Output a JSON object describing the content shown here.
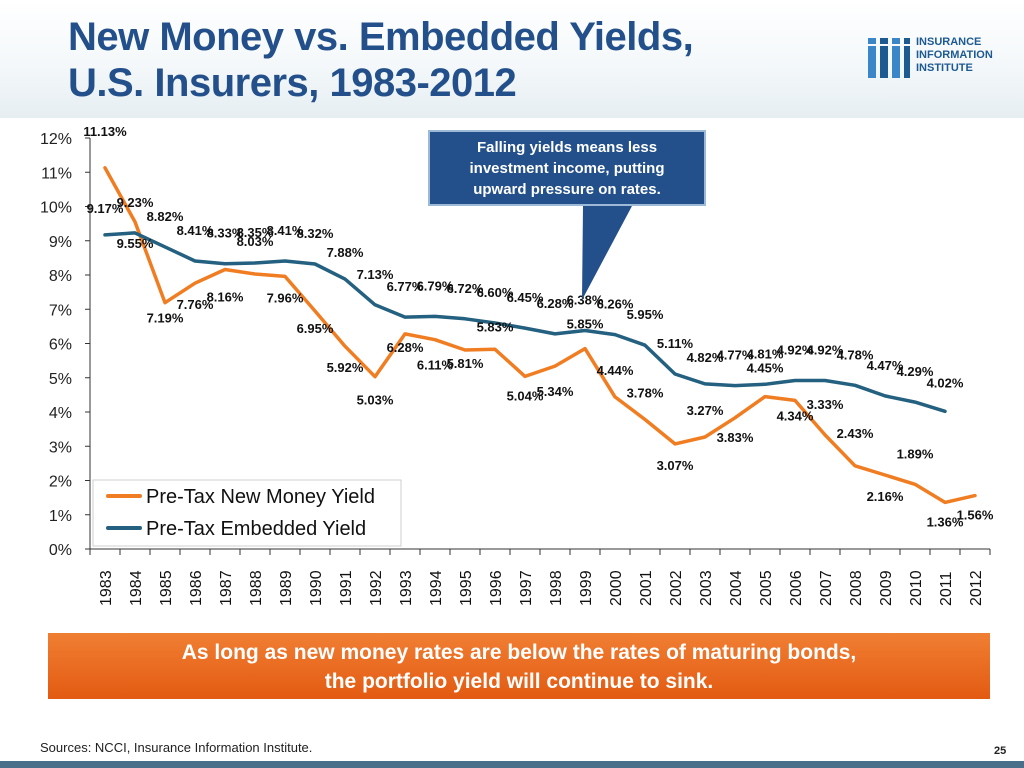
{
  "title_line1": "New Money vs. Embedded Yields,",
  "title_line2": "U.S. Insurers, 1983-2012",
  "logo": {
    "line1": "INSURANCE",
    "line2": "INFORMATION",
    "line3": "INSTITUTE"
  },
  "callout": {
    "line1": "Falling yields means less",
    "line2": "investment income, putting",
    "line3": "upward pressure on rates."
  },
  "banner": {
    "line1": "As long as new money rates are below the rates of maturing bonds,",
    "line2": "the portfolio yield will continue to sink."
  },
  "sources": "Sources: NCCI, Insurance Information Institute.",
  "page_number": "25",
  "colors": {
    "title": "#23508a",
    "new_money": "#f07d21",
    "embedded": "#24607f",
    "banner": "#e8661e"
  },
  "chart_data": {
    "type": "line",
    "title": "New Money vs. Embedded Yields, U.S. Insurers, 1983-2012",
    "xlabel": "",
    "ylabel": "",
    "ylim": [
      0,
      12
    ],
    "y_ticks": [
      "0%",
      "1%",
      "2%",
      "3%",
      "4%",
      "5%",
      "6%",
      "7%",
      "8%",
      "9%",
      "10%",
      "11%",
      "12%"
    ],
    "categories": [
      "1983",
      "1984",
      "1985",
      "1986",
      "1987",
      "1988",
      "1989",
      "1990",
      "1991",
      "1992",
      "1993",
      "1994",
      "1995",
      "1996",
      "1997",
      "1998",
      "1999",
      "2000",
      "2001",
      "2002",
      "2003",
      "2004",
      "2005",
      "2006",
      "2007",
      "2008",
      "2009",
      "2010",
      "2011",
      "2012"
    ],
    "legend_position": "bottom-left",
    "series": [
      {
        "name": "Pre-Tax New Money Yield",
        "color": "#f07d21",
        "values": [
          11.13,
          9.55,
          7.19,
          7.76,
          8.16,
          8.03,
          7.96,
          6.95,
          5.92,
          5.03,
          6.28,
          6.11,
          5.81,
          5.83,
          5.04,
          5.34,
          5.85,
          4.44,
          3.78,
          3.07,
          3.27,
          3.83,
          4.45,
          4.34,
          3.33,
          2.43,
          2.16,
          1.89,
          1.36,
          1.56
        ],
        "labels": [
          "11.13%",
          "9.55%",
          "7.19%",
          "7.76%",
          "8.16%",
          "8.03%",
          "7.96%",
          "6.95%",
          "5.92%",
          "5.03%",
          "6.28%",
          "6.11%",
          "5.81%",
          "5.83%",
          "5.04%",
          "5.34%",
          "5.85%",
          "4.44%",
          "3.78%",
          "3.07%",
          "3.27%",
          "3.83%",
          "4.45%",
          "4.34%",
          "3.33%",
          "2.43%",
          "2.16%",
          "1.89%",
          "1.36%",
          "1.56%"
        ]
      },
      {
        "name": "Pre-Tax Embedded Yield",
        "color": "#24607f",
        "values": [
          9.17,
          9.23,
          8.82,
          8.41,
          8.33,
          8.35,
          8.41,
          8.32,
          7.88,
          7.13,
          6.77,
          6.79,
          6.72,
          6.6,
          6.45,
          6.28,
          6.38,
          6.26,
          5.95,
          5.11,
          4.82,
          4.77,
          4.81,
          4.92,
          4.92,
          4.78,
          4.47,
          4.29,
          4.02,
          null
        ],
        "labels": [
          "9.17%",
          "9.23%",
          "8.82%",
          "8.41%",
          "8.33%",
          "8.35%",
          "8.41%",
          "8.32%",
          "7.88%",
          "7.13%",
          "6.77%",
          "6.79%",
          "6.72%",
          "6.60%",
          "6.45%",
          "6.28%",
          "6.38%",
          "6.26%",
          "5.95%",
          "5.11%",
          "4.82%",
          "4.77%",
          "4.81%",
          "4.92%",
          "4.92%",
          "4.78%",
          "4.47%",
          "4.29%",
          "4.02%",
          ""
        ]
      }
    ]
  }
}
